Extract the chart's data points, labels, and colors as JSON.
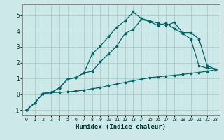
{
  "xlabel": "Humidex (Indice chaleur)",
  "bg_color": "#cce8e8",
  "grid_color": "#aacccc",
  "line_color": "#006666",
  "xlim": [
    -0.5,
    23.5
  ],
  "ylim": [
    -1.3,
    5.7
  ],
  "yticks": [
    -1,
    0,
    1,
    2,
    3,
    4,
    5
  ],
  "xticks": [
    0,
    1,
    2,
    3,
    4,
    5,
    6,
    7,
    8,
    9,
    10,
    11,
    12,
    13,
    14,
    15,
    16,
    17,
    18,
    19,
    20,
    21,
    22,
    23
  ],
  "curve_min": {
    "x": [
      0,
      1,
      2,
      3,
      4,
      5,
      6,
      7,
      8,
      9,
      10,
      11,
      12,
      13,
      14,
      15,
      16,
      17,
      18,
      19,
      20,
      21,
      22,
      23
    ],
    "y": [
      -1.0,
      -0.55,
      0.05,
      0.1,
      0.12,
      0.15,
      0.2,
      0.25,
      0.35,
      0.42,
      0.55,
      0.65,
      0.75,
      0.85,
      0.95,
      1.05,
      1.1,
      1.15,
      1.2,
      1.25,
      1.32,
      1.38,
      1.45,
      1.55
    ]
  },
  "curve_mid": {
    "x": [
      0,
      1,
      2,
      3,
      4,
      5,
      6,
      7,
      8,
      9,
      10,
      11,
      12,
      13,
      14,
      15,
      16,
      17,
      18,
      19,
      20,
      21,
      22,
      23
    ],
    "y": [
      -1.0,
      -0.55,
      0.05,
      0.1,
      0.4,
      0.95,
      1.05,
      1.35,
      1.45,
      2.05,
      2.55,
      3.05,
      3.85,
      4.1,
      4.75,
      4.6,
      4.35,
      4.5,
      4.15,
      3.85,
      3.5,
      1.8,
      1.65,
      1.6
    ]
  },
  "curve_max": {
    "x": [
      0,
      1,
      2,
      3,
      4,
      5,
      6,
      7,
      8,
      9,
      10,
      11,
      12,
      13,
      14,
      15,
      16,
      17,
      18,
      19,
      20,
      21,
      22,
      23
    ],
    "y": [
      -1.0,
      -0.55,
      0.05,
      0.1,
      0.4,
      0.95,
      1.05,
      1.35,
      2.55,
      3.05,
      3.65,
      4.25,
      4.65,
      5.2,
      4.8,
      4.65,
      4.5,
      4.35,
      4.55,
      3.9,
      3.9,
      3.5,
      1.8,
      1.6
    ]
  }
}
